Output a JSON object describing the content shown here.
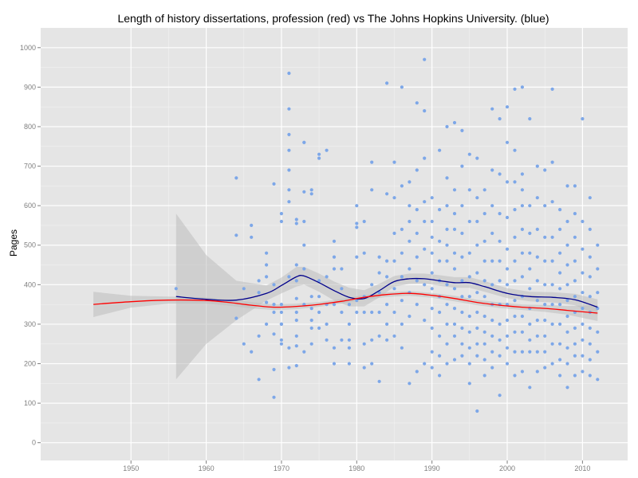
{
  "chart_data": {
    "type": "scatter",
    "title": "Length of history dissertations, profession (red) vs The Johns Hopkins University. (blue)",
    "xlabel": "",
    "ylabel": "Pages",
    "xlim": [
      1938,
      2016
    ],
    "ylim": [
      -45,
      1050
    ],
    "x_ticks": [
      1950,
      1960,
      1970,
      1980,
      1990,
      2000,
      2010
    ],
    "y_ticks": [
      0,
      100,
      200,
      300,
      400,
      500,
      600,
      700,
      800,
      900,
      1000
    ],
    "grid": true,
    "colors": {
      "panel": "#e5e5e5",
      "grid_major": "#ffffff",
      "grid_minor": "#f2f2f2",
      "points": "#7da7e8",
      "ribbon": "#bdbdbd",
      "jhu_line": "#00008b",
      "profession_line": "#ff0000"
    },
    "series": [
      {
        "name": "The Johns Hopkins University",
        "kind": "points",
        "x": [
          1956,
          1964,
          1964,
          1964,
          1965,
          1965,
          1966,
          1966,
          1966,
          1967,
          1967,
          1967,
          1967,
          1968,
          1968,
          1968,
          1968,
          1968,
          1969,
          1969,
          1969,
          1969,
          1969,
          1969,
          1969,
          1970,
          1970,
          1970,
          1970,
          1970,
          1970,
          1970,
          1970,
          1971,
          1971,
          1971,
          1971,
          1971,
          1971,
          1971,
          1971,
          1971,
          1971,
          1972,
          1972,
          1972,
          1972,
          1972,
          1972,
          1972,
          1972,
          1972,
          1972,
          1973,
          1973,
          1973,
          1973,
          1973,
          1973,
          1973,
          1973,
          1974,
          1974,
          1974,
          1974,
          1974,
          1974,
          1974,
          1975,
          1975,
          1975,
          1975,
          1975,
          1975,
          1976,
          1976,
          1976,
          1976,
          1976,
          1977,
          1977,
          1977,
          1977,
          1977,
          1977,
          1978,
          1978,
          1978,
          1978,
          1979,
          1979,
          1979,
          1979,
          1979,
          1980,
          1980,
          1980,
          1980,
          1980,
          1980,
          1981,
          1981,
          1981,
          1981,
          1981,
          1981,
          1982,
          1982,
          1982,
          1982,
          1982,
          1982,
          1983,
          1983,
          1983,
          1983,
          1983,
          1983,
          1984,
          1984,
          1984,
          1984,
          1984,
          1984,
          1984,
          1985,
          1985,
          1985,
          1985,
          1985,
          1985,
          1985,
          1986,
          1986,
          1986,
          1986,
          1986,
          1986,
          1986,
          1986,
          1987,
          1987,
          1987,
          1987,
          1987,
          1987,
          1987,
          1987,
          1988,
          1988,
          1988,
          1988,
          1988,
          1988,
          1988,
          1988,
          1989,
          1989,
          1989,
          1989,
          1989,
          1989,
          1989,
          1989,
          1989,
          1990,
          1990,
          1990,
          1990,
          1990,
          1990,
          1990,
          1990,
          1990,
          1990,
          1991,
          1991,
          1991,
          1991,
          1991,
          1991,
          1991,
          1991,
          1991,
          1991,
          1992,
          1992,
          1992,
          1992,
          1992,
          1992,
          1992,
          1992,
          1992,
          1992,
          1992,
          1993,
          1993,
          1993,
          1993,
          1993,
          1993,
          1993,
          1993,
          1993,
          1993,
          1993,
          1994,
          1994,
          1994,
          1994,
          1994,
          1994,
          1994,
          1994,
          1994,
          1994,
          1994,
          1995,
          1995,
          1995,
          1995,
          1995,
          1995,
          1995,
          1995,
          1995,
          1995,
          1995,
          1996,
          1996,
          1996,
          1996,
          1996,
          1996,
          1996,
          1996,
          1996,
          1996,
          1996,
          1997,
          1997,
          1997,
          1997,
          1997,
          1997,
          1997,
          1997,
          1997,
          1997,
          1997,
          1998,
          1998,
          1998,
          1998,
          1998,
          1998,
          1998,
          1998,
          1998,
          1998,
          1998,
          1999,
          1999,
          1999,
          1999,
          1999,
          1999,
          1999,
          1999,
          1999,
          1999,
          1999,
          2000,
          2000,
          2000,
          2000,
          2000,
          2000,
          2000,
          2000,
          2000,
          2000,
          2000,
          2000,
          2001,
          2001,
          2001,
          2001,
          2001,
          2001,
          2001,
          2001,
          2001,
          2001,
          2001,
          2001,
          2002,
          2002,
          2002,
          2002,
          2002,
          2002,
          2002,
          2002,
          2002,
          2002,
          2002,
          2002,
          2003,
          2003,
          2003,
          2003,
          2003,
          2003,
          2003,
          2003,
          2003,
          2003,
          2003,
          2004,
          2004,
          2004,
          2004,
          2004,
          2004,
          2004,
          2004,
          2004,
          2004,
          2005,
          2005,
          2005,
          2005,
          2005,
          2005,
          2005,
          2005,
          2005,
          2005,
          2006,
          2006,
          2006,
          2006,
          2006,
          2006,
          2006,
          2006,
          2006,
          2006,
          2007,
          2007,
          2007,
          2007,
          2007,
          2007,
          2007,
          2007,
          2007,
          2007,
          2008,
          2008,
          2008,
          2008,
          2008,
          2008,
          2008,
          2008,
          2008,
          2008,
          2008,
          2009,
          2009,
          2009,
          2009,
          2009,
          2009,
          2009,
          2009,
          2009,
          2009,
          2009,
          2010,
          2010,
          2010,
          2010,
          2010,
          2010,
          2010,
          2010,
          2010,
          2010,
          2011,
          2011,
          2011,
          2011,
          2011,
          2011,
          2011,
          2011,
          2011,
          2011,
          2012,
          2012,
          2012,
          2012,
          2012,
          2012,
          2012
        ],
        "y": [
          390,
          670,
          525,
          315,
          390,
          250,
          230,
          550,
          520,
          160,
          410,
          380,
          270,
          355,
          300,
          420,
          450,
          480,
          655,
          115,
          185,
          275,
          330,
          350,
          400,
          580,
          560,
          300,
          350,
          330,
          250,
          260,
          300,
          935,
          845,
          780,
          740,
          690,
          640,
          610,
          420,
          240,
          190,
          565,
          555,
          450,
          410,
          365,
          330,
          310,
          270,
          245,
          195,
          760,
          760,
          635,
          560,
          500,
          440,
          350,
          230,
          640,
          630,
          370,
          340,
          310,
          290,
          250,
          730,
          720,
          410,
          370,
          330,
          290,
          740,
          420,
          350,
          300,
          260,
          510,
          470,
          440,
          350,
          240,
          200,
          440,
          390,
          330,
          260,
          350,
          300,
          260,
          240,
          200,
          600,
          555,
          545,
          470,
          360,
          330,
          560,
          480,
          370,
          330,
          250,
          190,
          710,
          640,
          400,
          330,
          260,
          200,
          470,
          430,
          380,
          330,
          270,
          155,
          910,
          630,
          460,
          420,
          350,
          300,
          260,
          710,
          620,
          530,
          460,
          390,
          330,
          270,
          900,
          650,
          540,
          480,
          420,
          360,
          300,
          240,
          660,
          600,
          560,
          510,
          440,
          380,
          320,
          150,
          860,
          690,
          590,
          530,
          470,
          410,
          350,
          180,
          970,
          840,
          720,
          610,
          560,
          490,
          400,
          310,
          200,
          620,
          560,
          520,
          480,
          430,
          390,
          340,
          290,
          230,
          190,
          740,
          590,
          510,
          460,
          410,
          370,
          330,
          270,
          220,
          170,
          800,
          670,
          600,
          540,
          500,
          460,
          400,
          350,
          300,
          250,
          200,
          810,
          640,
          580,
          540,
          480,
          440,
          390,
          340,
          300,
          270,
          210,
          790,
          700,
          600,
          530,
          470,
          410,
          370,
          330,
          290,
          250,
          220,
          730,
          640,
          560,
          480,
          420,
          370,
          320,
          280,
          240,
          200,
          150,
          720,
          620,
          560,
          500,
          430,
          380,
          330,
          290,
          250,
          220,
          80,
          640,
          580,
          510,
          460,
          410,
          370,
          320,
          280,
          250,
          210,
          170,
          845,
          690,
          600,
          530,
          460,
          400,
          350,
          310,
          270,
          230,
          190,
          820,
          680,
          580,
          510,
          460,
          410,
          350,
          300,
          260,
          220,
          120,
          760,
          660,
          570,
          490,
          440,
          400,
          350,
          310,
          270,
          240,
          200,
          850,
          740,
          660,
          590,
          520,
          460,
          410,
          360,
          320,
          280,
          230,
          170,
          895,
          900,
          680,
          600,
          540,
          480,
          420,
          370,
          320,
          280,
          230,
          180,
          640,
          600,
          530,
          480,
          440,
          390,
          340,
          300,
          260,
          230,
          140,
          820,
          700,
          620,
          540,
          470,
          410,
          360,
          310,
          270,
          230,
          180,
          690,
          600,
          520,
          460,
          400,
          350,
          310,
          270,
          230,
          190,
          895,
          710,
          610,
          520,
          460,
          400,
          350,
          300,
          250,
          200,
          590,
          540,
          480,
          430,
          390,
          350,
          300,
          250,
          210,
          170,
          650,
          560,
          500,
          450,
          400,
          360,
          320,
          280,
          240,
          200,
          140,
          650,
          580,
          520,
          460,
          410,
          370,
          330,
          290,
          250,
          220,
          170,
          820,
          560,
          490,
          430,
          380,
          340,
          300,
          260,
          220,
          180,
          620,
          540,
          470,
          420,
          370,
          330,
          290,
          250,
          210,
          170,
          500,
          440,
          380,
          340,
          280,
          230,
          160
        ]
      },
      {
        "name": "The Johns Hopkins University",
        "kind": "smooth",
        "x": [
          1956,
          1960,
          1964,
          1968,
          1970,
          1972,
          1973,
          1975,
          1977,
          1979,
          1981,
          1983,
          1985,
          1987,
          1989,
          1991,
          1993,
          1995,
          1997,
          2000,
          2003,
          2006,
          2009,
          2012
        ],
        "y": [
          370,
          363,
          361,
          378,
          398,
          420,
          422,
          405,
          385,
          368,
          365,
          385,
          408,
          415,
          415,
          410,
          405,
          405,
          395,
          378,
          370,
          368,
          362,
          343
        ]
      },
      {
        "name": "profession",
        "kind": "smooth",
        "x": [
          1945,
          1950,
          1955,
          1960,
          1963,
          1966,
          1969,
          1972,
          1975,
          1978,
          1981,
          1984,
          1987,
          1990,
          1993,
          1996,
          1999,
          2002,
          2005,
          2008,
          2012
        ],
        "y": [
          350,
          357,
          361,
          360,
          355,
          348,
          343,
          345,
          350,
          358,
          368,
          375,
          378,
          373,
          365,
          355,
          348,
          343,
          340,
          335,
          328
        ]
      }
    ],
    "ribbons": [
      {
        "x": [
          1956,
          1960,
          1964,
          1968,
          1970,
          1972,
          1973,
          1975,
          1977,
          1979,
          1981,
          1983,
          1985,
          1987,
          1989,
          1991,
          1993,
          1995,
          1997,
          2000,
          2003,
          2006,
          2009,
          2012
        ],
        "lower": [
          160,
          250,
          310,
          360,
          378,
          395,
          400,
          382,
          360,
          345,
          345,
          368,
          395,
          402,
          403,
          397,
          392,
          392,
          382,
          366,
          358,
          355,
          348,
          323
        ],
        "upper": [
          580,
          475,
          410,
          398,
          418,
          445,
          445,
          428,
          408,
          392,
          386,
          402,
          422,
          428,
          428,
          424,
          419,
          419,
          409,
          391,
          382,
          381,
          377,
          363
        ]
      },
      {
        "x": [
          1945,
          1950,
          1955,
          1960,
          1963,
          1966,
          1969,
          1972,
          1975,
          1978,
          1981,
          1984,
          1987,
          1990,
          1993,
          1996,
          1999,
          2002,
          2005,
          2008,
          2012
        ],
        "lower": [
          318,
          342,
          352,
          352,
          347,
          340,
          336,
          338,
          344,
          352,
          362,
          369,
          372,
          367,
          358,
          348,
          341,
          336,
          331,
          324,
          308
        ],
        "upper": [
          382,
          372,
          370,
          368,
          363,
          356,
          350,
          352,
          356,
          364,
          374,
          381,
          384,
          379,
          372,
          362,
          355,
          350,
          349,
          346,
          348
        ]
      }
    ]
  }
}
